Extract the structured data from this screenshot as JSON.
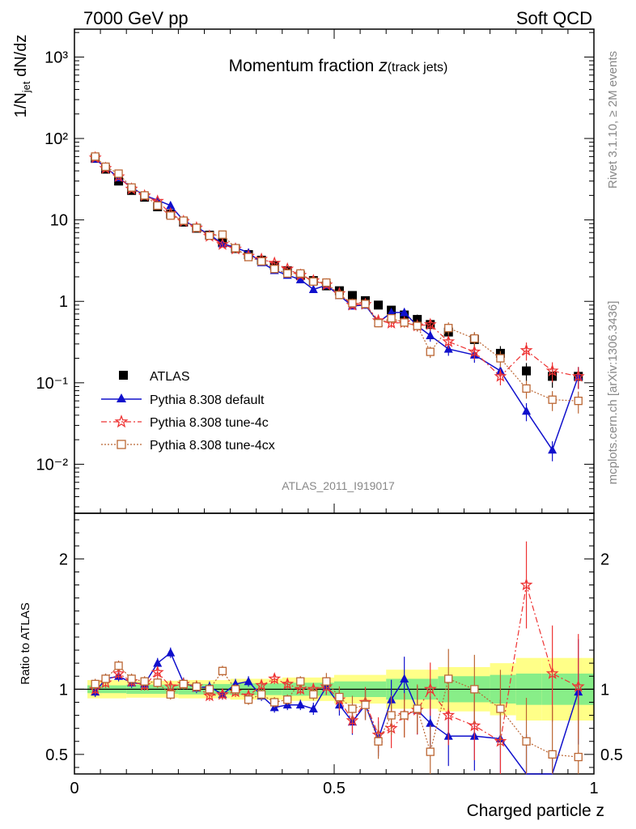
{
  "header": {
    "left": "7000 GeV pp",
    "right": "Soft QCD"
  },
  "side": {
    "top": "Rivet 3.1.10, ≥ 2M events",
    "bottom": "mcplots.cern.ch [arXiv:1306.3436]"
  },
  "chart_data": {
    "type": "scatter",
    "title_main": "Momentum fraction ",
    "title_var": "z",
    "title_sub": "(track jets)",
    "analysis_id": "ATLAS_2011_I919017",
    "xlabel": "Charged particle z",
    "ylabel_main": "1/N",
    "ylabel_sub": "jet",
    "ylabel_rest": " dN/dz",
    "ratio_ylabel": "Ratio to ATLAS",
    "xlim": [
      0,
      1
    ],
    "ylim_main": [
      0.0025,
      2200
    ],
    "ylim_ratio": [
      0.35,
      2.35
    ],
    "log_y_main": true,
    "x_ticks": [
      "0",
      "0.5",
      "1"
    ],
    "y_ticks_main": [
      "10⁻²",
      "10⁻¹",
      "1",
      "10",
      "10²",
      "10³"
    ],
    "y_ticks_ratio": [
      "0.5",
      "1",
      "2"
    ],
    "legend_position": "bottom-left",
    "x": [
      0.04,
      0.06,
      0.085,
      0.11,
      0.135,
      0.16,
      0.185,
      0.21,
      0.235,
      0.26,
      0.285,
      0.31,
      0.335,
      0.36,
      0.385,
      0.41,
      0.435,
      0.46,
      0.485,
      0.51,
      0.535,
      0.56,
      0.585,
      0.61,
      0.635,
      0.66,
      0.685,
      0.72,
      0.77,
      0.82,
      0.87,
      0.92,
      0.97
    ],
    "series": [
      {
        "name": "ATLAS",
        "color": "#000000",
        "marker": "square",
        "y": [
          57,
          42,
          30,
          23,
          19,
          14.5,
          11.8,
          9.4,
          7.9,
          6.5,
          5.3,
          4.45,
          3.75,
          3.2,
          2.75,
          2.38,
          2.08,
          1.8,
          1.55,
          1.35,
          1.18,
          1.02,
          0.9,
          0.78,
          0.68,
          0.6,
          0.52,
          0.42,
          0.34,
          0.23,
          0.14,
          0.12,
          0.12
        ]
      },
      {
        "name": "Pythia 8.308 default",
        "color": "#1010cc",
        "marker": "triangle",
        "y": [
          56,
          44,
          33,
          25,
          20,
          17.5,
          15,
          9.8,
          8.1,
          6.6,
          5.1,
          4.6,
          3.95,
          3.0,
          2.4,
          2.1,
          1.85,
          1.4,
          1.58,
          1.18,
          0.88,
          0.9,
          0.55,
          0.73,
          0.73,
          0.5,
          0.38,
          0.26,
          0.22,
          0.14,
          0.045,
          0.015,
          0.12
        ],
        "ratio": [
          0.98,
          1.08,
          1.1,
          1.05,
          1.04,
          1.2,
          1.28,
          1.05,
          1.01,
          1.02,
          0.96,
          1.04,
          1.06,
          0.95,
          0.86,
          0.88,
          0.88,
          0.85,
          1.02,
          0.88,
          0.75,
          0.88,
          0.62,
          0.92,
          1.08,
          0.84,
          0.74,
          0.64,
          0.64,
          0.62,
          0.32,
          0.13,
          0.98
        ]
      },
      {
        "name": "Pythia 8.308 tune-4c",
        "color": "#ee3333",
        "marker": "star",
        "y": [
          58,
          43,
          34,
          24,
          19.8,
          17,
          12,
          9.6,
          8,
          6.3,
          5,
          4.4,
          3.6,
          3.3,
          2.95,
          2.5,
          2.1,
          1.8,
          1.6,
          1.25,
          0.9,
          0.92,
          0.58,
          0.54,
          0.55,
          0.5,
          0.52,
          0.32,
          0.24,
          0.12,
          0.25,
          0.14,
          0.12
        ],
        "ratio": [
          1.0,
          1.05,
          1.12,
          1.06,
          1.03,
          1.13,
          1.02,
          1.04,
          1.02,
          0.95,
          0.96,
          0.98,
          0.95,
          1.03,
          1.08,
          1.04,
          1.0,
          1.0,
          1.02,
          0.92,
          0.76,
          0.9,
          0.65,
          0.7,
          0.8,
          0.84,
          1.0,
          0.8,
          0.72,
          0.6,
          1.8,
          1.12,
          1.02
        ]
      },
      {
        "name": "Pythia 8.308 tune-4cx",
        "color": "#bb6633",
        "marker": "open-square",
        "y": [
          60,
          45,
          37,
          25,
          20,
          15,
          11.3,
          9.8,
          8,
          6.4,
          6.6,
          4.5,
          3.5,
          3.1,
          2.5,
          2.2,
          2.2,
          1.75,
          1.7,
          1.2,
          0.95,
          0.93,
          0.54,
          0.62,
          0.55,
          0.5,
          0.24,
          0.47,
          0.35,
          0.2,
          0.085,
          0.062,
          0.06
        ],
        "ratio": [
          1.04,
          1.08,
          1.18,
          1.08,
          1.06,
          1.05,
          0.96,
          1.04,
          1.02,
          1.0,
          1.14,
          1.0,
          0.92,
          0.96,
          0.9,
          0.92,
          1.06,
          0.96,
          1.06,
          0.94,
          0.85,
          0.88,
          0.6,
          0.8,
          0.8,
          0.85,
          0.52,
          1.08,
          1.0,
          0.85,
          0.6,
          0.5,
          0.48
        ]
      }
    ],
    "bands": {
      "inner_color": "#88ee88",
      "outer_color": "#ffff88",
      "x_edges": [
        0.025,
        0.1,
        0.2,
        0.3,
        0.4,
        0.5,
        0.6,
        0.7,
        0.8,
        0.85,
        0.9,
        1.0
      ],
      "inner_half": [
        0.03,
        0.035,
        0.04,
        0.045,
        0.05,
        0.06,
        0.08,
        0.1,
        0.11,
        0.12,
        0.12
      ],
      "outer_half": [
        0.07,
        0.065,
        0.07,
        0.08,
        0.09,
        0.11,
        0.15,
        0.17,
        0.2,
        0.24,
        0.24
      ]
    }
  }
}
